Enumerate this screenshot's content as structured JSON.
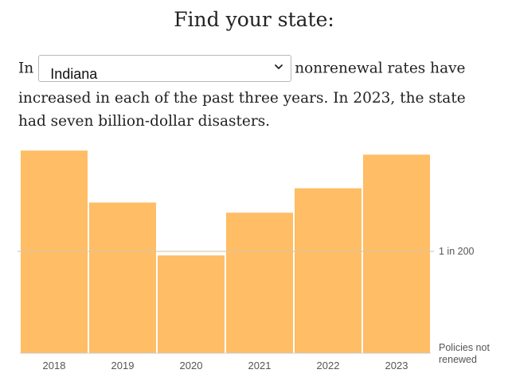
{
  "heading": "Find your state:",
  "sentence": {
    "prefix": "In",
    "selected_state": "Indiana",
    "suffix_first": "nonrenewal rates have",
    "continuation": "increased in each of the past three years. In 2023, the state had seven billion-dollar disasters."
  },
  "icons": {
    "select_arrow": "chevron-down-icon"
  },
  "colors": {
    "bar": "#ffbd66",
    "reference_line": "#d9c5a6",
    "axis": "#cccccc"
  },
  "chart_data": {
    "type": "bar",
    "categories": [
      "2018",
      "2019",
      "2020",
      "2021",
      "2022",
      "2023"
    ],
    "values": [
      1.99,
      1.48,
      0.96,
      1.38,
      1.62,
      1.95
    ],
    "value_unit": "nonrenewals per 200 policies",
    "reference_line": {
      "value": 1,
      "label": "1 in 200"
    },
    "ylabel": "Policies not renewed",
    "ylabel_lines": [
      "Policies not",
      "renewed"
    ],
    "ylim": [
      0,
      2
    ],
    "grid": false,
    "legend": "none"
  }
}
